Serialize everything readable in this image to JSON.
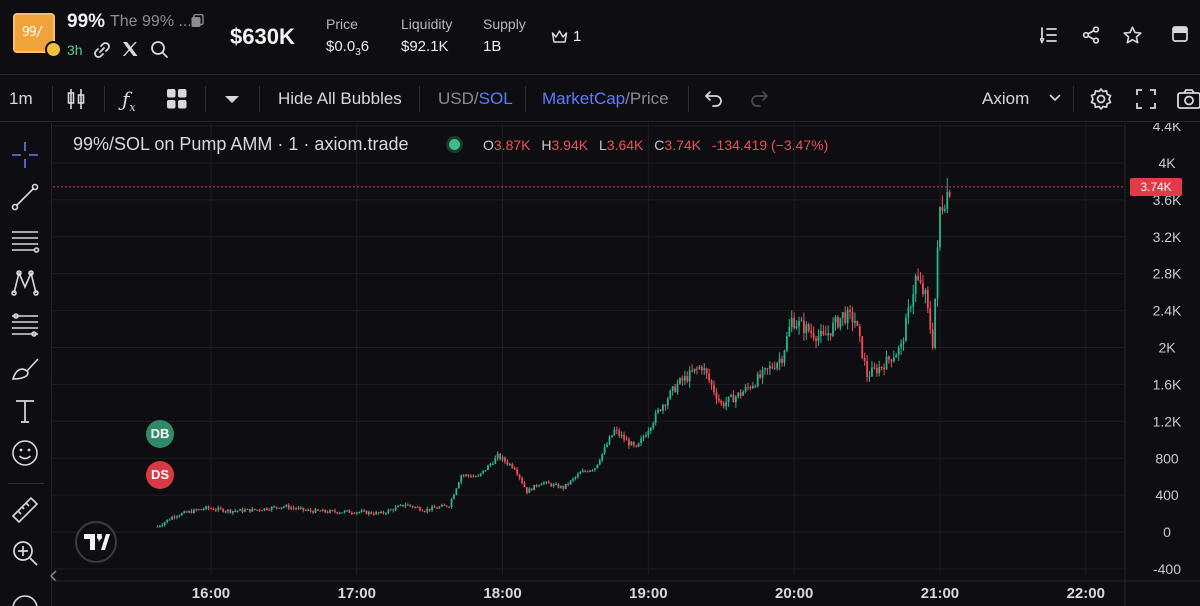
{
  "token": {
    "logo_text": "99/",
    "ticker": "99%",
    "name": "The 99% ...",
    "age": "3h"
  },
  "header": {
    "market_cap": "$630K",
    "price_label": "Price",
    "price_value_prefix": "$0.0",
    "price_value_sub": "3",
    "price_value_suffix": "6",
    "liquidity_label": "Liquidity",
    "liquidity_value": "$92.1K",
    "supply_label": "Supply",
    "supply_value": "1B",
    "holders_count": "1"
  },
  "toolbar": {
    "interval": "1m",
    "indicators_icon": "fx-icon",
    "hide_bubbles": "Hide All Bubbles",
    "usd": "USD",
    "slash1": "/",
    "sol": "SOL",
    "marketcap": "MarketCap",
    "slash2": "/",
    "price": "Price",
    "provider": "Axiom"
  },
  "legend": {
    "title": "99%/SOL on Pump AMM · 1 · axiom.trade",
    "o_label": "O",
    "o_value": "3.87K",
    "h_label": "H",
    "h_value": "3.94K",
    "l_label": "L",
    "l_value": "3.64K",
    "c_label": "C",
    "c_value": "3.74K",
    "change": "-134.419 (−3.47%)"
  },
  "bubbles": {
    "db": "DB",
    "ds": "DS"
  },
  "current_price_tag": "3.74K",
  "colors": {
    "up": "#2bb58f",
    "down": "#f04e58",
    "accent": "#5b7cff",
    "grid": "#1d1d23"
  },
  "chart_data": {
    "type": "candlestick",
    "y_axis_label": "MarketCap",
    "ylim": [
      -400,
      4400
    ],
    "y_ticks": [
      "4.4K",
      "4K",
      "3.6K",
      "3.2K",
      "2.8K",
      "2.4K",
      "2K",
      "1.6K",
      "1.2K",
      "800",
      "400",
      "0",
      "-400"
    ],
    "y_tick_values": [
      4400,
      4000,
      3600,
      3200,
      2800,
      2400,
      2000,
      1600,
      1200,
      800,
      400,
      0,
      -400
    ],
    "x_ticks": [
      "16:00",
      "17:00",
      "18:00",
      "19:00",
      "20:00",
      "21:00",
      "22:00"
    ],
    "x_tick_minutes": [
      960,
      1020,
      1080,
      1140,
      1200,
      1260,
      1320
    ],
    "x_range_minutes": [
      895,
      1367
    ],
    "current_value": 3740,
    "trend": [
      [
        938,
        60
      ],
      [
        945,
        180
      ],
      [
        958,
        260
      ],
      [
        968,
        230
      ],
      [
        978,
        240
      ],
      [
        990,
        280
      ],
      [
        1000,
        230
      ],
      [
        1010,
        220
      ],
      [
        1020,
        220
      ],
      [
        1030,
        200
      ],
      [
        1040,
        300
      ],
      [
        1048,
        240
      ],
      [
        1058,
        290
      ],
      [
        1063,
        620
      ],
      [
        1070,
        600
      ],
      [
        1078,
        820
      ],
      [
        1085,
        700
      ],
      [
        1090,
        440
      ],
      [
        1096,
        540
      ],
      [
        1105,
        480
      ],
      [
        1112,
        640
      ],
      [
        1118,
        700
      ],
      [
        1126,
        1100
      ],
      [
        1135,
        900
      ],
      [
        1145,
        1350
      ],
      [
        1152,
        1600
      ],
      [
        1162,
        1800
      ],
      [
        1170,
        1380
      ],
      [
        1178,
        1500
      ],
      [
        1187,
        1700
      ],
      [
        1195,
        1900
      ],
      [
        1199,
        2300
      ],
      [
        1205,
        2200
      ],
      [
        1212,
        2100
      ],
      [
        1220,
        2350
      ],
      [
        1225,
        2300
      ],
      [
        1230,
        1700
      ],
      [
        1236,
        1800
      ],
      [
        1244,
        2000
      ],
      [
        1250,
        2750
      ],
      [
        1254,
        2550
      ],
      [
        1257,
        2050
      ],
      [
        1260,
        3500
      ],
      [
        1264,
        3740
      ]
    ]
  }
}
